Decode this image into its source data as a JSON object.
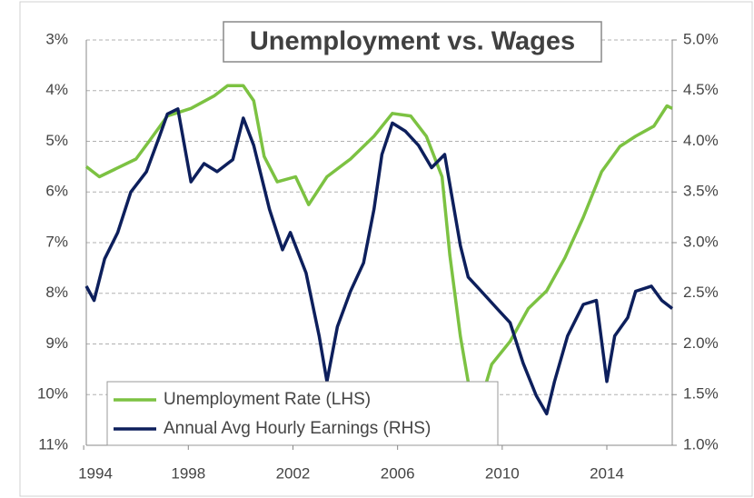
{
  "chart_data": {
    "type": "line",
    "title": "Unemployment vs. Wages",
    "xlim": [
      1994.1,
      2016.5
    ],
    "xticks": [
      1994,
      1998,
      2002,
      2006,
      2010,
      2014
    ],
    "ylim": [
      3,
      11
    ],
    "y_reversed": true,
    "yticks": [
      {
        "value": 3,
        "label": "3%"
      },
      {
        "value": 4,
        "label": "4%"
      },
      {
        "value": 5,
        "label": "5%"
      },
      {
        "value": 6,
        "label": "6%"
      },
      {
        "value": 7,
        "label": "7%"
      },
      {
        "value": 8,
        "label": "8%"
      },
      {
        "value": 9,
        "label": "9%"
      },
      {
        "value": 10,
        "label": "10%"
      },
      {
        "value": 11,
        "label": "11%"
      }
    ],
    "y2lim": [
      1.0,
      5.0
    ],
    "y2ticks": [
      {
        "value": 1.0,
        "label": "1.0%"
      },
      {
        "value": 1.5,
        "label": "1.5%"
      },
      {
        "value": 2.0,
        "label": "2.0%"
      },
      {
        "value": 2.5,
        "label": "2.5%"
      },
      {
        "value": 3.0,
        "label": "3.0%"
      },
      {
        "value": 3.5,
        "label": "3.5%"
      },
      {
        "value": 4.0,
        "label": "4.0%"
      },
      {
        "value": 4.5,
        "label": "4.5%"
      },
      {
        "value": 5.0,
        "label": "5.0%"
      }
    ],
    "grid": true,
    "legend": "lower left",
    "series": [
      {
        "name": "Unemployment Rate (LHS)",
        "color": "#7cc242",
        "axis": "y",
        "x": [
          1994.1,
          1994.6,
          1996.0,
          1996.5,
          1997.2,
          1998.1,
          1999.0,
          1999.5,
          2000.1,
          2000.5,
          2000.9,
          2001.4,
          2002.1,
          2002.6,
          2003.3,
          2004.2,
          2005.1,
          2005.8,
          2006.5,
          2007.1,
          2007.7,
          2008.0,
          2008.4,
          2008.7,
          2009.2,
          2009.6,
          2010.3,
          2011.0,
          2011.7,
          2012.4,
          2013.1,
          2013.8,
          2014.5,
          2015.1,
          2015.8,
          2016.3,
          2016.5
        ],
        "values": [
          5.5,
          5.7,
          5.35,
          5.0,
          4.5,
          4.35,
          4.1,
          3.9,
          3.9,
          4.2,
          5.3,
          5.8,
          5.7,
          6.25,
          5.7,
          5.35,
          4.9,
          4.45,
          4.5,
          4.9,
          5.7,
          7.25,
          8.85,
          9.75,
          10.1,
          9.4,
          8.95,
          8.3,
          7.95,
          7.3,
          6.5,
          5.6,
          5.1,
          4.9,
          4.7,
          4.3,
          4.35
        ]
      },
      {
        "name": "Annual Avg Hourly Earnings (RHS)",
        "color": "#0d1f5c",
        "axis": "y2",
        "x": [
          1994.1,
          1994.4,
          1994.8,
          1995.3,
          1995.8,
          1996.4,
          1996.9,
          1997.2,
          1997.6,
          1998.1,
          1998.6,
          1999.1,
          1999.7,
          2000.1,
          2000.5,
          2001.1,
          2001.6,
          2001.9,
          2002.5,
          2003.0,
          2003.3,
          2003.7,
          2004.2,
          2004.7,
          2005.1,
          2005.4,
          2005.8,
          2006.3,
          2006.8,
          2007.3,
          2007.8,
          2008.4,
          2008.7,
          2009.2,
          2009.8,
          2010.3,
          2010.8,
          2011.3,
          2011.7,
          2012.0,
          2012.5,
          2013.1,
          2013.6,
          2014.0,
          2014.3,
          2014.8,
          2015.1,
          2015.7,
          2016.1,
          2016.5
        ],
        "values": [
          2.57,
          2.43,
          2.84,
          3.1,
          3.5,
          3.7,
          4.05,
          4.27,
          4.32,
          3.6,
          3.78,
          3.7,
          3.82,
          4.23,
          3.96,
          3.33,
          2.93,
          3.1,
          2.7,
          2.08,
          1.63,
          2.17,
          2.52,
          2.8,
          3.33,
          3.87,
          4.18,
          4.1,
          3.96,
          3.74,
          3.87,
          2.97,
          2.66,
          2.52,
          2.35,
          2.21,
          1.81,
          1.49,
          1.31,
          1.63,
          2.08,
          2.39,
          2.43,
          1.63,
          2.08,
          2.26,
          2.52,
          2.57,
          2.43,
          2.35
        ]
      }
    ]
  }
}
